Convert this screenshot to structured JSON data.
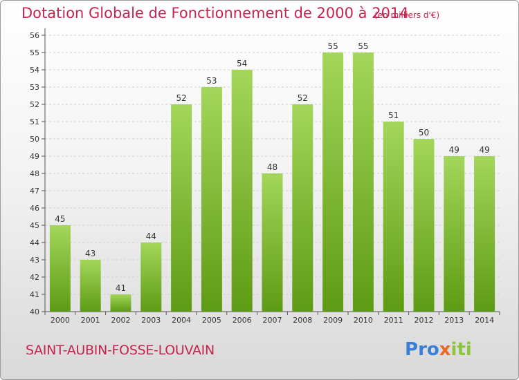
{
  "page": {
    "title": "Dotation Globale de Fonctionnement de 2000 à 2014",
    "unit": "(en milliers d'€)",
    "commune": "SAINT-AUBIN-FOSSE-LOUVAIN",
    "logo": {
      "text": "Proxiti",
      "letters": [
        "P",
        "r",
        "o",
        "x",
        "i",
        "t",
        "i"
      ],
      "colors": [
        "#3a7fd5",
        "#3a7fd5",
        "#3a7fd5",
        "#e8692a",
        "#8cc63f",
        "#8cc63f",
        "#8cc63f"
      ]
    }
  },
  "colors": {
    "bar_top": "#a3d65a",
    "bar_bottom": "#5e9b14",
    "accent": "#c4244f",
    "grid": "#cfcfcf"
  },
  "chart_data": {
    "type": "bar",
    "title": "Dotation Globale de Fonctionnement de 2000 à 2014",
    "xlabel": "",
    "ylabel": "(en milliers d'€)",
    "ylim": [
      40,
      56
    ],
    "yticks": [
      40,
      41,
      42,
      43,
      44,
      45,
      46,
      47,
      48,
      49,
      50,
      51,
      52,
      53,
      54,
      55,
      56
    ],
    "grid": "horizontal dashed",
    "categories": [
      "2000",
      "2001",
      "2002",
      "2003",
      "2004",
      "2005",
      "2006",
      "2007",
      "2008",
      "2009",
      "2010",
      "2011",
      "2012",
      "2013",
      "2014"
    ],
    "values": [
      45,
      43,
      41,
      44,
      52,
      53,
      54,
      48,
      52,
      55,
      55,
      51,
      50,
      49,
      49
    ]
  }
}
